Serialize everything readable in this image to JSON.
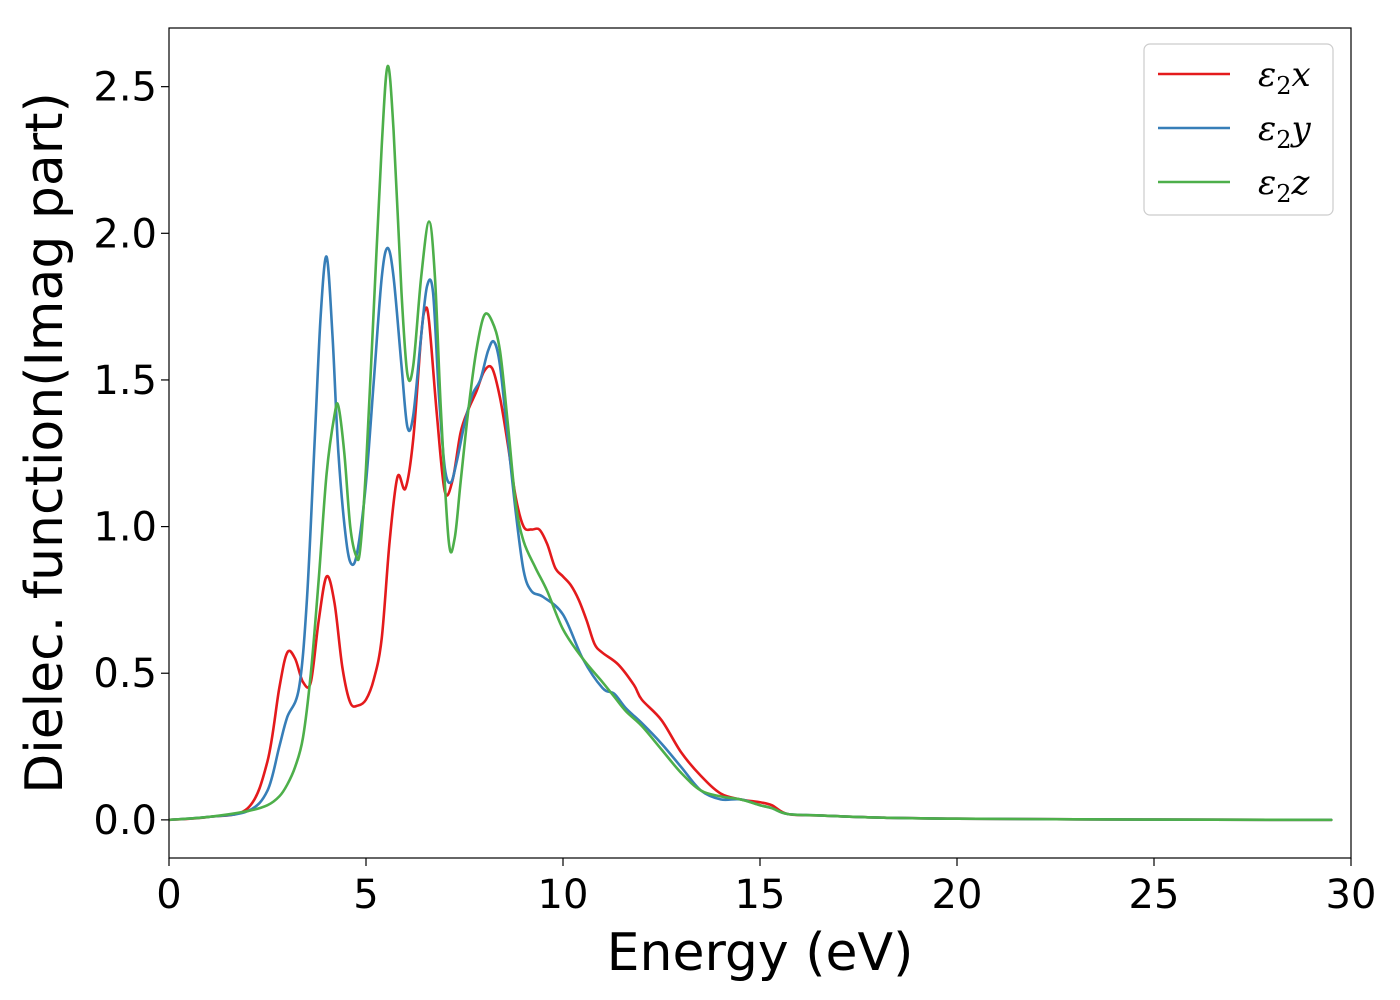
{
  "chart_data": {
    "type": "line",
    "xlabel": "Energy (eV)",
    "ylabel": "Dielec. function(Imag part)",
    "xlim": [
      0,
      30
    ],
    "ylim": [
      -0.13,
      2.7
    ],
    "xticks": [
      "0",
      "5",
      "10",
      "15",
      "20",
      "25",
      "30"
    ],
    "yticks": [
      "0.0",
      "0.5",
      "1.0",
      "1.5",
      "2.0",
      "2.5"
    ],
    "grid": false,
    "legend_position": "top-right",
    "series": [
      {
        "name": "ε₂x",
        "legend": {
          "symbol": "ε",
          "sub": "2",
          "suffix": "x"
        },
        "color": "#e41a1c",
        "x": [
          0,
          1,
          2,
          2.5,
          2.8,
          3.0,
          3.2,
          3.4,
          3.6,
          3.8,
          4.0,
          4.2,
          4.4,
          4.6,
          4.8,
          5.0,
          5.2,
          5.4,
          5.6,
          5.8,
          6.0,
          6.2,
          6.4,
          6.5,
          6.6,
          6.8,
          7.0,
          7.2,
          7.4,
          7.6,
          7.8,
          8.0,
          8.2,
          8.4,
          8.6,
          8.8,
          9.0,
          9.2,
          9.4,
          9.6,
          9.8,
          10.0,
          10.2,
          10.4,
          10.6,
          10.8,
          11.0,
          11.4,
          11.8,
          12.0,
          12.5,
          13.0,
          13.5,
          14.0,
          14.5,
          15.0,
          15.3,
          15.7,
          16.5,
          18,
          20,
          25,
          29.5
        ],
        "y": [
          0.0,
          0.01,
          0.04,
          0.2,
          0.45,
          0.57,
          0.55,
          0.47,
          0.47,
          0.68,
          0.83,
          0.74,
          0.52,
          0.4,
          0.39,
          0.41,
          0.48,
          0.62,
          0.95,
          1.17,
          1.13,
          1.3,
          1.65,
          1.74,
          1.7,
          1.38,
          1.12,
          1.16,
          1.32,
          1.4,
          1.46,
          1.53,
          1.54,
          1.44,
          1.28,
          1.1,
          1.0,
          0.99,
          0.99,
          0.94,
          0.86,
          0.83,
          0.8,
          0.75,
          0.68,
          0.6,
          0.57,
          0.53,
          0.46,
          0.41,
          0.34,
          0.23,
          0.15,
          0.09,
          0.07,
          0.06,
          0.05,
          0.02,
          0.015,
          0.008,
          0.004,
          0.001,
          0.0
        ]
      },
      {
        "name": "ε₂y",
        "legend": {
          "symbol": "ε",
          "sub": "2",
          "suffix": "y"
        },
        "color": "#377eb8",
        "x": [
          0,
          1,
          2,
          2.5,
          2.8,
          3.0,
          3.3,
          3.5,
          3.7,
          3.85,
          4.0,
          4.15,
          4.3,
          4.5,
          4.65,
          4.8,
          5.0,
          5.2,
          5.4,
          5.55,
          5.7,
          5.9,
          6.05,
          6.2,
          6.4,
          6.55,
          6.7,
          6.85,
          7.0,
          7.15,
          7.3,
          7.5,
          7.7,
          7.9,
          8.1,
          8.25,
          8.4,
          8.6,
          8.8,
          9.0,
          9.2,
          9.5,
          10.0,
          10.5,
          11.0,
          11.3,
          11.6,
          12.0,
          12.5,
          13.0,
          13.5,
          14.0,
          14.5,
          15.0,
          15.3,
          15.7,
          16.5,
          18,
          20,
          25,
          29.5
        ],
        "y": [
          0.0,
          0.01,
          0.03,
          0.1,
          0.25,
          0.35,
          0.45,
          0.75,
          1.3,
          1.72,
          1.92,
          1.65,
          1.25,
          0.95,
          0.87,
          0.93,
          1.15,
          1.5,
          1.85,
          1.95,
          1.85,
          1.55,
          1.34,
          1.38,
          1.65,
          1.82,
          1.8,
          1.45,
          1.2,
          1.15,
          1.22,
          1.35,
          1.45,
          1.5,
          1.6,
          1.63,
          1.55,
          1.3,
          1.05,
          0.85,
          0.78,
          0.76,
          0.7,
          0.55,
          0.45,
          0.43,
          0.38,
          0.33,
          0.26,
          0.18,
          0.1,
          0.07,
          0.07,
          0.05,
          0.04,
          0.02,
          0.015,
          0.008,
          0.004,
          0.001,
          0.0
        ]
      },
      {
        "name": "ε₂z",
        "legend": {
          "symbol": "ε",
          "sub": "2",
          "suffix": "z"
        },
        "color": "#4daf4a",
        "x": [
          0,
          1,
          2,
          2.5,
          2.8,
          3.0,
          3.2,
          3.4,
          3.6,
          3.8,
          4.0,
          4.2,
          4.3,
          4.45,
          4.6,
          4.75,
          4.85,
          5.0,
          5.2,
          5.4,
          5.55,
          5.7,
          5.9,
          6.05,
          6.2,
          6.4,
          6.6,
          6.75,
          6.9,
          7.1,
          7.25,
          7.4,
          7.6,
          7.8,
          8.0,
          8.2,
          8.4,
          8.6,
          8.8,
          9.0,
          9.3,
          9.6,
          10.0,
          10.5,
          11.0,
          11.3,
          11.6,
          12.0,
          12.5,
          13.0,
          13.5,
          14.0,
          14.5,
          15.0,
          15.3,
          15.7,
          16.5,
          18,
          20,
          25,
          29.5
        ],
        "y": [
          0.0,
          0.01,
          0.03,
          0.05,
          0.08,
          0.12,
          0.18,
          0.28,
          0.5,
          0.82,
          1.18,
          1.38,
          1.41,
          1.25,
          1.0,
          0.9,
          0.92,
          1.2,
          1.75,
          2.3,
          2.57,
          2.35,
          1.8,
          1.52,
          1.55,
          1.85,
          2.04,
          1.85,
          1.4,
          0.95,
          0.96,
          1.15,
          1.4,
          1.6,
          1.72,
          1.7,
          1.6,
          1.35,
          1.08,
          0.95,
          0.86,
          0.78,
          0.65,
          0.55,
          0.47,
          0.42,
          0.37,
          0.32,
          0.24,
          0.16,
          0.1,
          0.08,
          0.07,
          0.05,
          0.04,
          0.02,
          0.015,
          0.008,
          0.004,
          0.001,
          0.0
        ]
      }
    ]
  }
}
